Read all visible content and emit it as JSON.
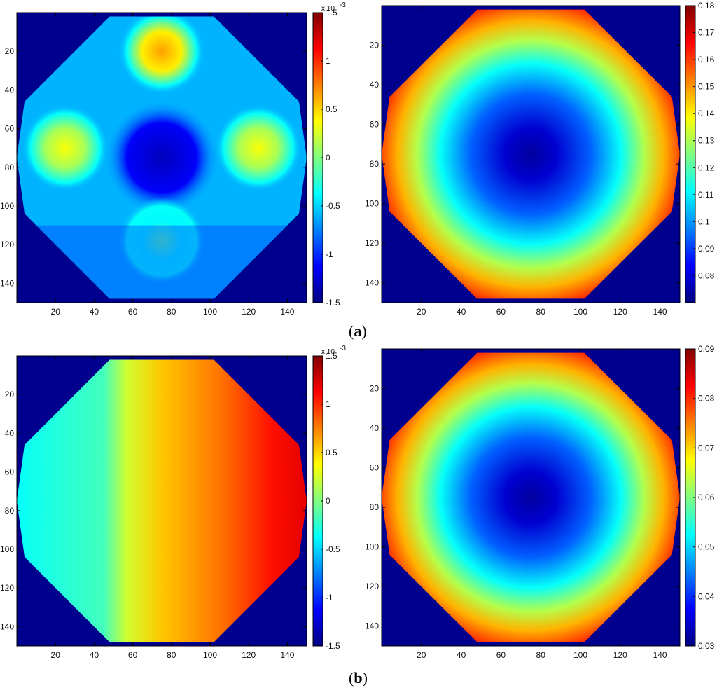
{
  "chart_data": [
    {
      "type": "heatmap",
      "panel": "a",
      "pattern": "four-lobe",
      "x_ticks": [
        20,
        40,
        60,
        80,
        100,
        120,
        140
      ],
      "y_ticks": [
        20,
        40,
        60,
        80,
        100,
        120,
        140
      ],
      "xlim": [
        0,
        150
      ],
      "ylim": [
        0,
        150
      ],
      "colorbar": {
        "min": -1.5,
        "max": 1.5,
        "ticks": [
          -1.5,
          -1,
          -0.5,
          0,
          0.5,
          1,
          1.5
        ],
        "tick_labels": [
          "-1.5",
          "-1",
          "-0.5",
          "0",
          "0.5",
          "1",
          "1.5"
        ],
        "multiplier": "x 10",
        "exponent": "-3"
      },
      "colormap": "jet",
      "background_color": "#00008f"
    },
    {
      "type": "heatmap",
      "panel": "a",
      "pattern": "radial",
      "x_ticks": [
        20,
        40,
        60,
        80,
        100,
        120,
        140
      ],
      "y_ticks": [
        20,
        40,
        60,
        80,
        100,
        120,
        140
      ],
      "xlim": [
        0,
        150
      ],
      "ylim": [
        0,
        150
      ],
      "colorbar": {
        "min": 0.07,
        "max": 0.18,
        "ticks": [
          0.08,
          0.09,
          0.1,
          0.11,
          0.12,
          0.13,
          0.14,
          0.15,
          0.16,
          0.17,
          0.18
        ],
        "tick_labels": [
          "0.08",
          "0.09",
          "0.1",
          "0.11",
          "0.12",
          "0.13",
          "0.14",
          "0.15",
          "0.16",
          "0.17",
          "0.18"
        ]
      },
      "colormap": "jet",
      "background_color": "#00008f"
    },
    {
      "type": "heatmap",
      "panel": "b",
      "pattern": "horizontal-gradient",
      "x_ticks": [
        20,
        40,
        60,
        80,
        100,
        120,
        140
      ],
      "y_ticks": [
        20,
        40,
        60,
        80,
        100,
        120,
        140
      ],
      "xlim": [
        0,
        150
      ],
      "ylim": [
        0,
        150
      ],
      "colorbar": {
        "min": -1.5,
        "max": 1.5,
        "ticks": [
          -1.5,
          -1,
          -0.5,
          0,
          0.5,
          1,
          1.5
        ],
        "tick_labels": [
          "-1.5",
          "-1",
          "-0.5",
          "0",
          "0.5",
          "1",
          "1.5"
        ],
        "multiplier": "x 10",
        "exponent": "-3"
      },
      "colormap": "jet",
      "background_color": "#00008f"
    },
    {
      "type": "heatmap",
      "panel": "b",
      "pattern": "radial",
      "x_ticks": [
        20,
        40,
        60,
        80,
        100,
        120,
        140
      ],
      "y_ticks": [
        20,
        40,
        60,
        80,
        100,
        120,
        140
      ],
      "xlim": [
        0,
        150
      ],
      "ylim": [
        0,
        150
      ],
      "colorbar": {
        "min": 0.03,
        "max": 0.09,
        "ticks": [
          0.03,
          0.04,
          0.05,
          0.06,
          0.07,
          0.08,
          0.09
        ],
        "tick_labels": [
          "0.03",
          "0.04",
          "0.05",
          "0.06",
          "0.07",
          "0.08",
          "0.09"
        ]
      },
      "colormap": "jet",
      "background_color": "#00008f"
    }
  ],
  "labels": {
    "a": "(a)",
    "a_open": "(",
    "a_letter": "a",
    "a_close": ")",
    "b_open": "(",
    "b_letter": "b",
    "b_close": ")"
  }
}
